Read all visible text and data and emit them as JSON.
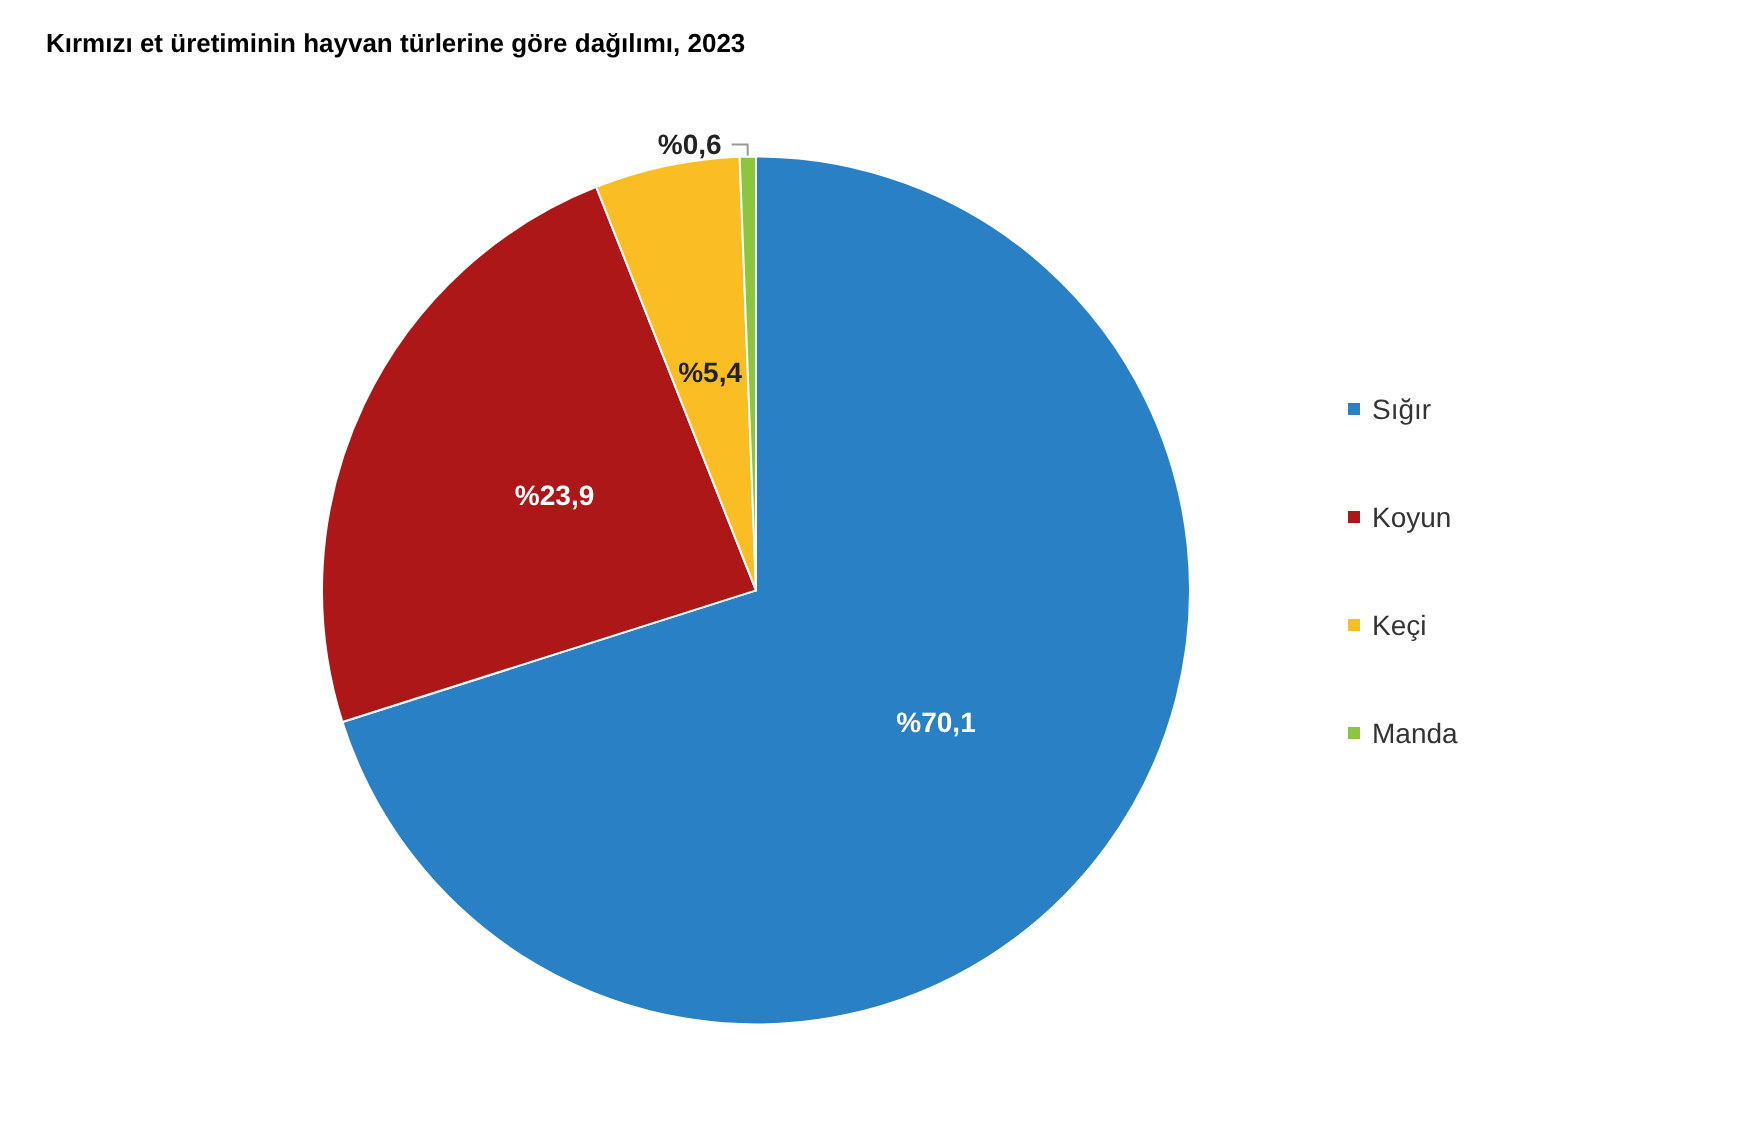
{
  "chart_data": {
    "type": "pie",
    "title": "Kırmızı et üretiminin hayvan türlerine göre dağılımı, 2023",
    "categories": [
      "Sığır",
      "Koyun",
      "Keçi",
      "Manda"
    ],
    "values": [
      70.1,
      23.9,
      5.4,
      0.6
    ],
    "value_labels": [
      "%70,1",
      "%23,9",
      "%5,4",
      "%0,6"
    ],
    "colors": [
      "#2a80c5",
      "#ad1717",
      "#fbbd24",
      "#8cc63f"
    ],
    "legend": "right"
  }
}
